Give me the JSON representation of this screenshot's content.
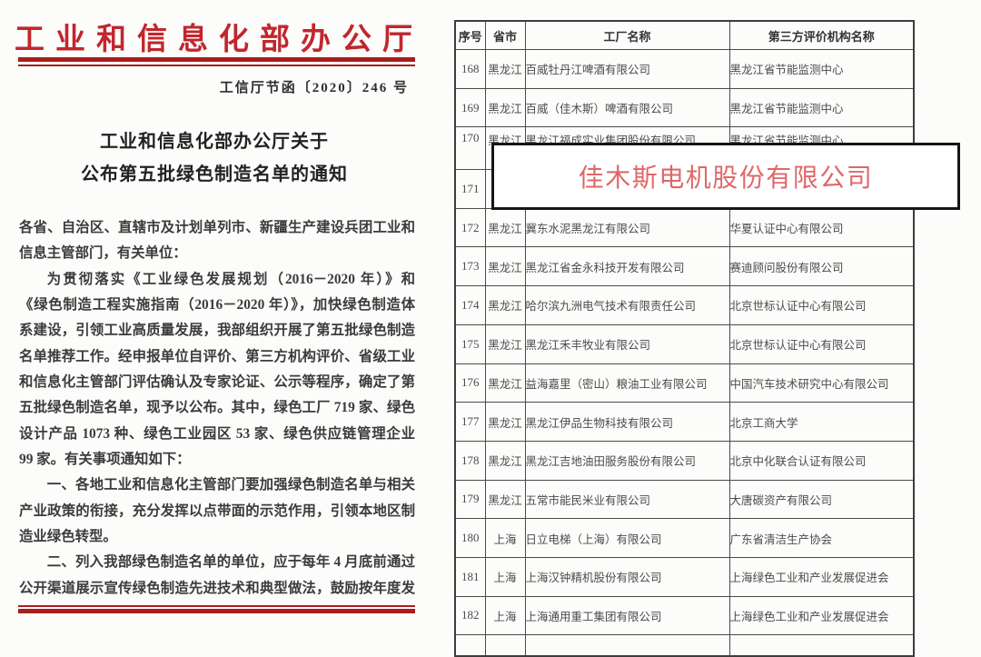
{
  "document": {
    "agency_title": "工业和信息化部办公厅",
    "doc_number": "工信厅节函〔2020〕246 号",
    "title_line1": "工业和信息化部办公厅关于",
    "title_line2": "公布第五批绿色制造名单的通知",
    "body_lines": [
      {
        "text": "各省、自治区、直辖市及计划单列市、新疆生产建设兵团工业和",
        "justify": true,
        "indent": false
      },
      {
        "text": "信息主管部门，有关单位：",
        "justify": false,
        "indent": false
      },
      {
        "text": "为贯彻落实《工业绿色发展规划（2016－2020 年）》和",
        "justify": true,
        "indent": true
      },
      {
        "text": "《绿色制造工程实施指南（2016－2020 年）》，加快绿色制造体",
        "justify": true,
        "indent": false
      },
      {
        "text": "系建设，引领工业高质量发展，我部组织开展了第五批绿色制造",
        "justify": true,
        "indent": false
      },
      {
        "text": "名单推荐工作。经申报单位自评价、第三方机构评价、省级工业",
        "justify": true,
        "indent": false
      },
      {
        "text": "和信息化主管部门评估确认及专家论证、公示等程序，确定了第",
        "justify": true,
        "indent": false
      },
      {
        "text": "五批绿色制造名单，现予以公布。其中，绿色工厂 719 家、绿色",
        "justify": true,
        "indent": false
      },
      {
        "text": "设计产品 1073 种、绿色工业园区 53 家、绿色供应链管理企业",
        "justify": true,
        "indent": false
      },
      {
        "text": "99 家。有关事项通知如下：",
        "justify": false,
        "indent": false
      },
      {
        "text": "一、各地工业和信息化主管部门要加强绿色制造名单与相关",
        "justify": true,
        "indent": true
      },
      {
        "text": "产业政策的衔接，充分发挥以点带面的示范作用，引领本地区制",
        "justify": true,
        "indent": false
      },
      {
        "text": "造业绿色转型。",
        "justify": false,
        "indent": false
      },
      {
        "text": "二、列入我部绿色制造名单的单位，应于每年 4 月底前通过",
        "justify": true,
        "indent": true
      },
      {
        "text": "公开渠道展示宣传绿色制造先进技术和典型做法，鼓励按年度发",
        "justify": true,
        "indent": false
      }
    ]
  },
  "table": {
    "headers": [
      "序号",
      "省市",
      "工厂名称",
      "第三方评价机构名称"
    ],
    "rows": [
      {
        "num": "168",
        "province": "黑龙江",
        "factory": "百威牡丹江啤酒有限公司",
        "agency": "黑龙江省节能监测中心"
      },
      {
        "num": "169",
        "province": "黑龙江",
        "factory": "百威（佳木斯）啤酒有限公司",
        "agency": "黑龙江省节能监测中心"
      },
      {
        "num": "170",
        "province": "黑龙江",
        "factory": "黑龙江福成实业集团股份有限公司",
        "agency": "黑龙江省节能监测中心"
      },
      {
        "num": "171",
        "province": "",
        "factory": "",
        "agency": ""
      },
      {
        "num": "172",
        "province": "黑龙江",
        "factory": "冀东水泥黑龙江有限公司",
        "agency": "华夏认证中心有限公司"
      },
      {
        "num": "173",
        "province": "黑龙江",
        "factory": "黑龙江省金永科技开发有限公司",
        "agency": "赛迪顾问股份有限公司"
      },
      {
        "num": "174",
        "province": "黑龙江",
        "factory": "哈尔滨九洲电气技术有限责任公司",
        "agency": "北京世标认证中心有限公司"
      },
      {
        "num": "175",
        "province": "黑龙江",
        "factory": "黑龙江禾丰牧业有限公司",
        "agency": "北京世标认证中心有限公司"
      },
      {
        "num": "176",
        "province": "黑龙江",
        "factory": "益海嘉里（密山）粮油工业有限公司",
        "agency": "中国汽车技术研究中心有限公司"
      },
      {
        "num": "177",
        "province": "黑龙江",
        "factory": "黑龙江伊品生物科技有限公司",
        "agency": "北京工商大学"
      },
      {
        "num": "178",
        "province": "黑龙江",
        "factory": "黑龙江吉地油田服务股份有限公司",
        "agency": "北京中化联合认证有限公司"
      },
      {
        "num": "179",
        "province": "黑龙江",
        "factory": "五常市能民米业有限公司",
        "agency": "大唐碳资产有限公司"
      },
      {
        "num": "180",
        "province": "上海",
        "factory": "日立电梯（上海）有限公司",
        "agency": "广东省清洁生产协会"
      },
      {
        "num": "181",
        "province": "上海",
        "factory": "上海汉钟精机股份有限公司",
        "agency": "上海绿色工业和产业发展促进会"
      },
      {
        "num": "182",
        "province": "上海",
        "factory": "上海通用重工集团有限公司",
        "agency": "上海绿色工业和产业发展促进会"
      }
    ]
  },
  "overlay": {
    "company": "佳木斯电机股份有限公司"
  },
  "colors": {
    "agency_title_red": "#c1272d",
    "rule_red": "#a81e1e",
    "overlay_text_red": "#de6868",
    "table_border": "#4a4a4a"
  }
}
